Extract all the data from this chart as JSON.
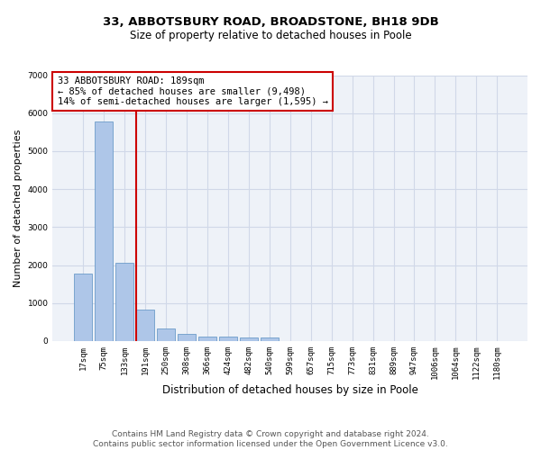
{
  "title_line1": "33, ABBOTSBURY ROAD, BROADSTONE, BH18 9DB",
  "title_line2": "Size of property relative to detached houses in Poole",
  "xlabel": "Distribution of detached houses by size in Poole",
  "ylabel": "Number of detached properties",
  "categories": [
    "17sqm",
    "75sqm",
    "133sqm",
    "191sqm",
    "250sqm",
    "308sqm",
    "366sqm",
    "424sqm",
    "482sqm",
    "540sqm",
    "599sqm",
    "657sqm",
    "715sqm",
    "773sqm",
    "831sqm",
    "889sqm",
    "947sqm",
    "1006sqm",
    "1064sqm",
    "1122sqm",
    "1180sqm"
  ],
  "values": [
    1780,
    5780,
    2060,
    820,
    340,
    200,
    120,
    110,
    95,
    85,
    0,
    0,
    0,
    0,
    0,
    0,
    0,
    0,
    0,
    0,
    0
  ],
  "bar_color": "#aec6e8",
  "bar_edge_color": "#5a8fc2",
  "vline_color": "#cc0000",
  "vline_pos": 2.575,
  "annotation_text": "33 ABBOTSBURY ROAD: 189sqm\n← 85% of detached houses are smaller (9,498)\n14% of semi-detached houses are larger (1,595) →",
  "annotation_box_color": "#ffffff",
  "annotation_box_edge_color": "#cc0000",
  "ylim": [
    0,
    7000
  ],
  "yticks": [
    0,
    1000,
    2000,
    3000,
    4000,
    5000,
    6000,
    7000
  ],
  "grid_color": "#d0d8e8",
  "background_color": "#eef2f8",
  "footer_line1": "Contains HM Land Registry data © Crown copyright and database right 2024.",
  "footer_line2": "Contains public sector information licensed under the Open Government Licence v3.0.",
  "title_fontsize": 9.5,
  "subtitle_fontsize": 8.5,
  "axis_label_fontsize": 8,
  "tick_fontsize": 6.5,
  "footer_fontsize": 6.5,
  "annotation_fontsize": 7.5
}
